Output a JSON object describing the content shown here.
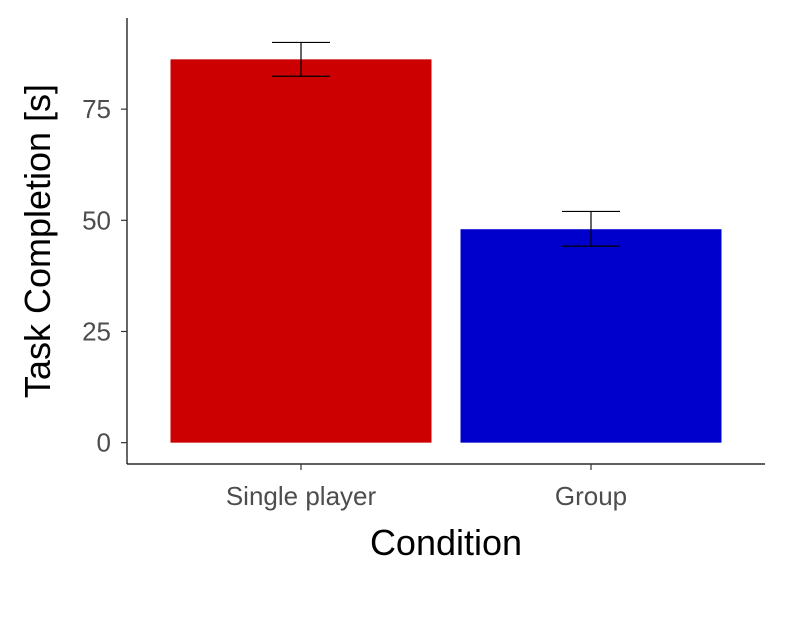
{
  "chart_data": {
    "type": "bar",
    "categories": [
      "Single player",
      "Group"
    ],
    "values": [
      86.2,
      48.0
    ],
    "errors": [
      [
        82.4,
        90.0
      ],
      [
        44.2,
        52.0
      ]
    ],
    "bar_colors": [
      "#cc0000",
      "#0000cc"
    ],
    "xlabel": "Condition",
    "ylabel": "Task Completion [s]",
    "ylim": [
      -4.8,
      95.5
    ],
    "yticks": [
      0,
      25,
      50,
      75
    ],
    "grid": false,
    "legend": "none"
  }
}
